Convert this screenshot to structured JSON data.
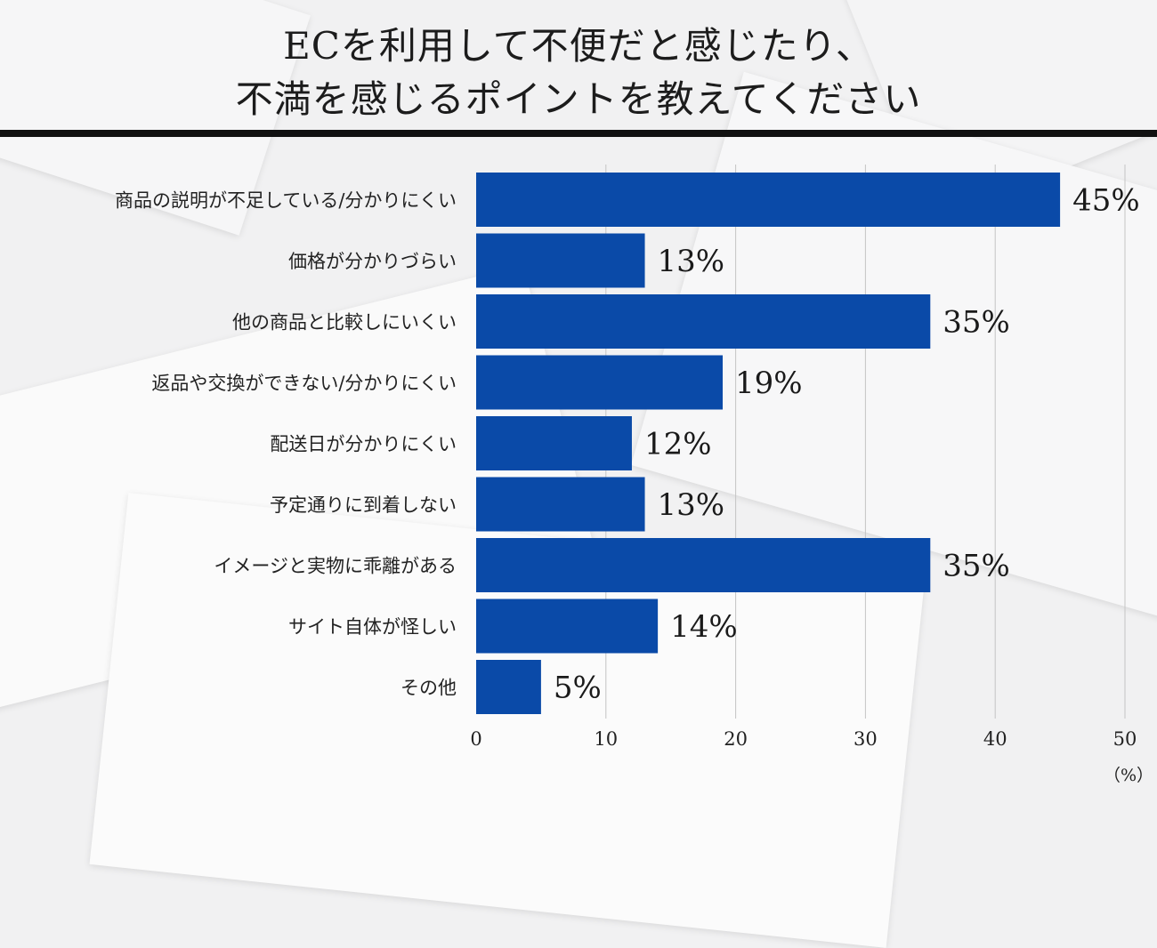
{
  "title": {
    "line1": "ECを利用して不便だと感じたり、",
    "line2": "不満を感じるポイントを教えてください"
  },
  "chart_data": {
    "type": "bar",
    "orientation": "horizontal",
    "categories": [
      "商品の説明が不足している/分かりにくい",
      "価格が分かりづらい",
      "他の商品と比較しにいくい",
      "返品や交換ができない/分かりにくい",
      "配送日が分かりにくい",
      "予定通りに到着しない",
      "イメージと実物に乖離がある",
      "サイト自体が怪しい",
      "その他"
    ],
    "values": [
      45,
      13,
      35,
      19,
      12,
      13,
      35,
      14,
      5
    ],
    "value_labels": [
      "45%",
      "13%",
      "35%",
      "19%",
      "12%",
      "13%",
      "35%",
      "14%",
      "5%"
    ],
    "xlim": [
      0,
      50
    ],
    "x_ticks": [
      0,
      10,
      20,
      30,
      40,
      50
    ],
    "x_unit": "（%）",
    "grid": true,
    "bar_color": "#0a4aa8"
  }
}
